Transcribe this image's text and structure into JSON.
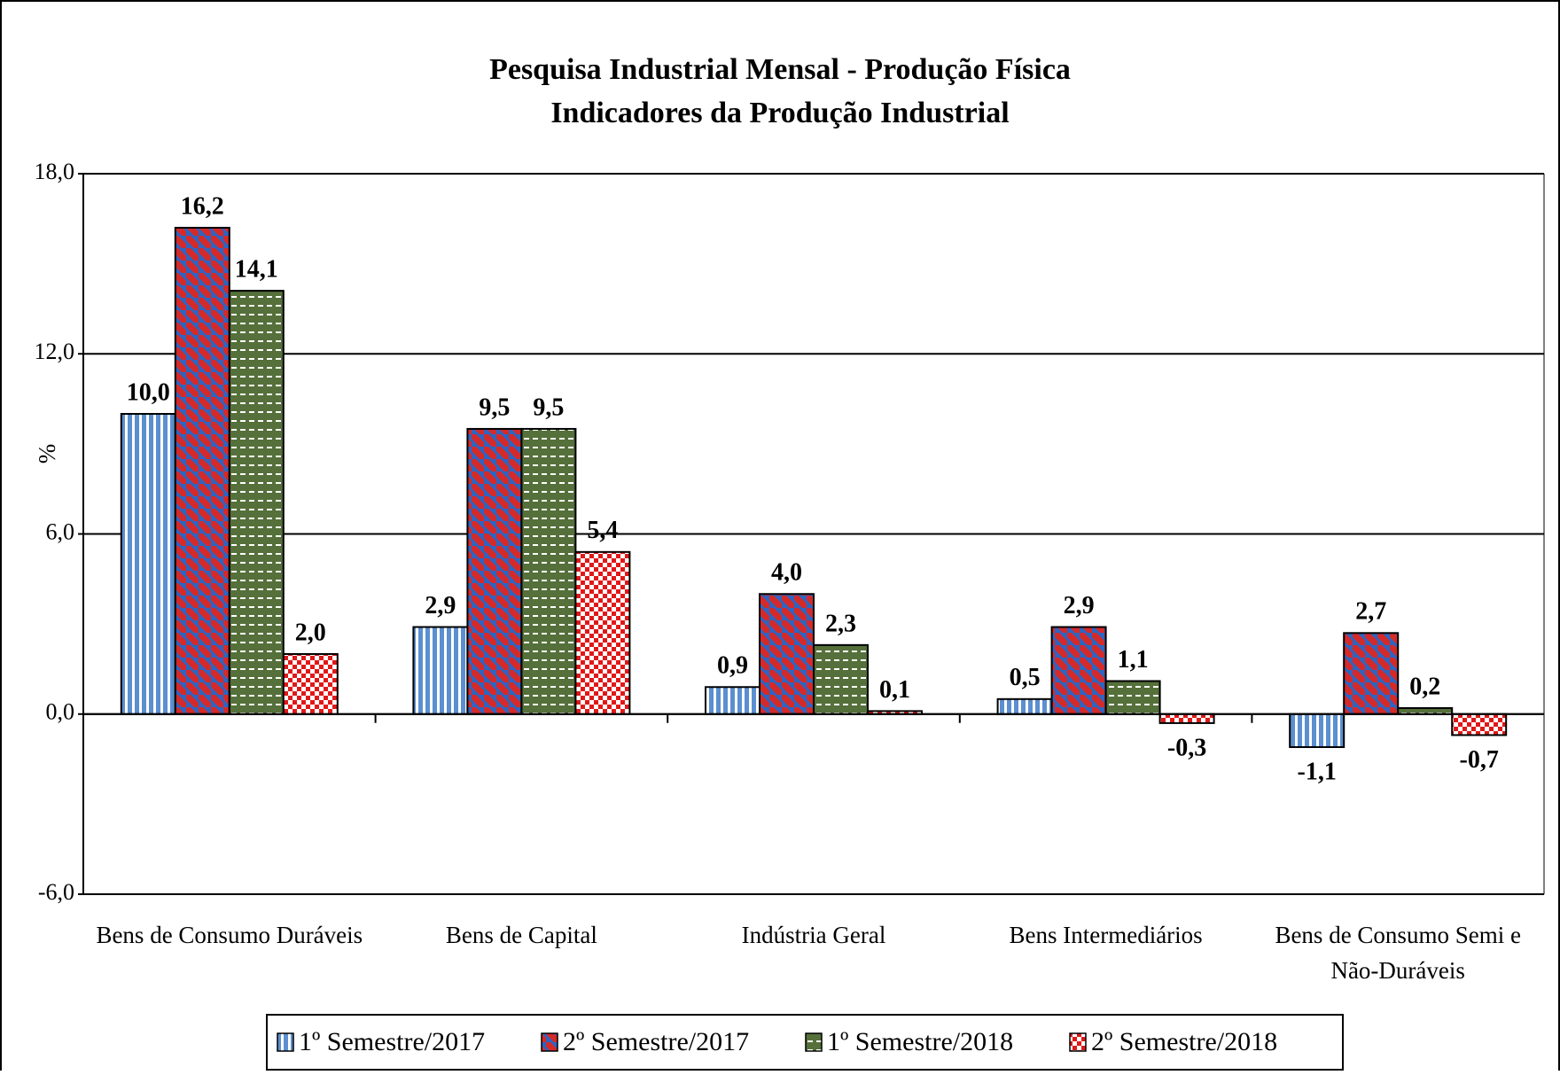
{
  "chart_data": {
    "type": "bar",
    "title": "Pesquisa Industrial Mensal - Produção Física",
    "subtitle": "Indicadores da Produção Industrial",
    "ylabel": "%",
    "categories": [
      "Bens de Consumo Duráveis",
      "Bens de Capital",
      "Indústria Geral",
      "Bens Intermediários",
      "Bens de Consumo Semi e Não-Duráveis"
    ],
    "series": [
      {
        "name": "1º Semestre/2017",
        "color": "#5b8fd0",
        "values": [
          10.0,
          2.9,
          0.9,
          0.5,
          -1.1
        ],
        "value_labels": [
          "10,0",
          "2,9",
          "0,9",
          "0,5",
          "-1,1"
        ]
      },
      {
        "name": "2º Semestre/2017",
        "color": "#d42a2a",
        "values": [
          16.2,
          9.5,
          4.0,
          2.9,
          2.7
        ],
        "value_labels": [
          "16,2",
          "9,5",
          "4,0",
          "2,9",
          "2,7"
        ]
      },
      {
        "name": "1º Semestre/2018",
        "color": "#55703a",
        "values": [
          14.1,
          9.5,
          2.3,
          1.1,
          0.2
        ],
        "value_labels": [
          "14,1",
          "9,5",
          "2,3",
          "1,1",
          "0,2"
        ]
      },
      {
        "name": "2º Semestre/2018",
        "color": "#e01818",
        "values": [
          2.0,
          5.4,
          0.1,
          -0.3,
          -0.7
        ],
        "value_labels": [
          "2,0",
          "5,4",
          "0,1",
          "-0,3",
          "-0,7"
        ]
      }
    ],
    "ylim": [
      -6,
      18
    ],
    "yticks": [
      {
        "value": -6,
        "label": "-6,0"
      },
      {
        "value": 0,
        "label": "0,0"
      },
      {
        "value": 6,
        "label": "6,0"
      },
      {
        "value": 12,
        "label": "12,0"
      },
      {
        "value": 18,
        "label": "18,0"
      }
    ],
    "grid": true,
    "legend": "bottom"
  }
}
